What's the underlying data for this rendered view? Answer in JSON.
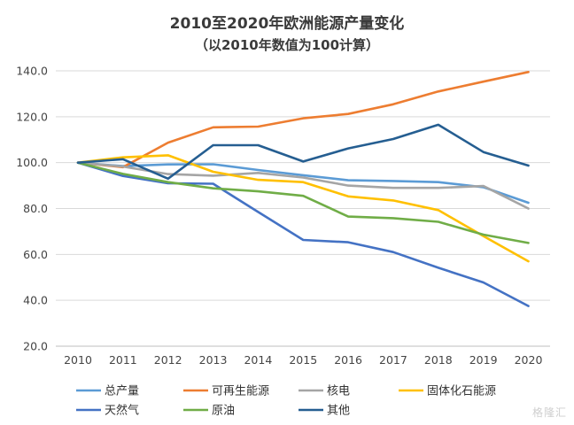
{
  "chart_data": {
    "type": "line",
    "title": "2010至2020年欧洲能源产量变化",
    "subtitle": "（以2010年数值为100计算）",
    "xlabel": "",
    "ylabel": "",
    "categories": [
      "2010",
      "2011",
      "2012",
      "2013",
      "2014",
      "2015",
      "2016",
      "2017",
      "2018",
      "2019",
      "2020"
    ],
    "ylim": [
      20,
      140
    ],
    "y_ticks": [
      "20.0",
      "40.0",
      "60.0",
      "80.0",
      "100.0",
      "120.0",
      "140.0"
    ],
    "y_tick_values": [
      20,
      40,
      60,
      80,
      100,
      120,
      140
    ],
    "grid": true,
    "legend_position": "bottom",
    "series": [
      {
        "name": "总产量",
        "color": "#5b9bd5",
        "values": [
          100,
          98.5,
          99.2,
          99.3,
          96.8,
          94.5,
          92.3,
          92.0,
          91.5,
          89.3,
          82.5
        ]
      },
      {
        "name": "可再生能源",
        "color": "#ed7d31",
        "values": [
          100,
          98.0,
          108.7,
          115.4,
          115.7,
          119.3,
          121.2,
          125.4,
          131.0,
          135.3,
          139.5
        ]
      },
      {
        "name": "核电",
        "color": "#a5a5a5",
        "values": [
          100,
          98.3,
          95.0,
          94.3,
          95.5,
          93.5,
          90.0,
          89.0,
          89.0,
          89.8,
          80.0
        ]
      },
      {
        "name": "固体化石能源",
        "color": "#ffc000",
        "values": [
          100,
          102.3,
          103.2,
          96.0,
          92.5,
          91.5,
          85.3,
          83.5,
          79.3,
          68.0,
          57.0
        ]
      },
      {
        "name": "天然气",
        "color": "#4472c4",
        "values": [
          100,
          94.2,
          91.0,
          90.8,
          78.5,
          66.3,
          65.3,
          61.0,
          54.2,
          47.8,
          37.5
        ]
      },
      {
        "name": "原油",
        "color": "#70ad47",
        "values": [
          100,
          95.1,
          91.5,
          88.8,
          87.5,
          85.5,
          76.5,
          75.8,
          74.2,
          68.6,
          65.0
        ]
      },
      {
        "name": "其他",
        "color": "#255e91",
        "values": [
          100,
          101.5,
          93.0,
          107.6,
          107.6,
          100.5,
          106.2,
          110.3,
          116.5,
          104.6,
          98.7
        ]
      }
    ]
  },
  "watermark": "格隆汇"
}
